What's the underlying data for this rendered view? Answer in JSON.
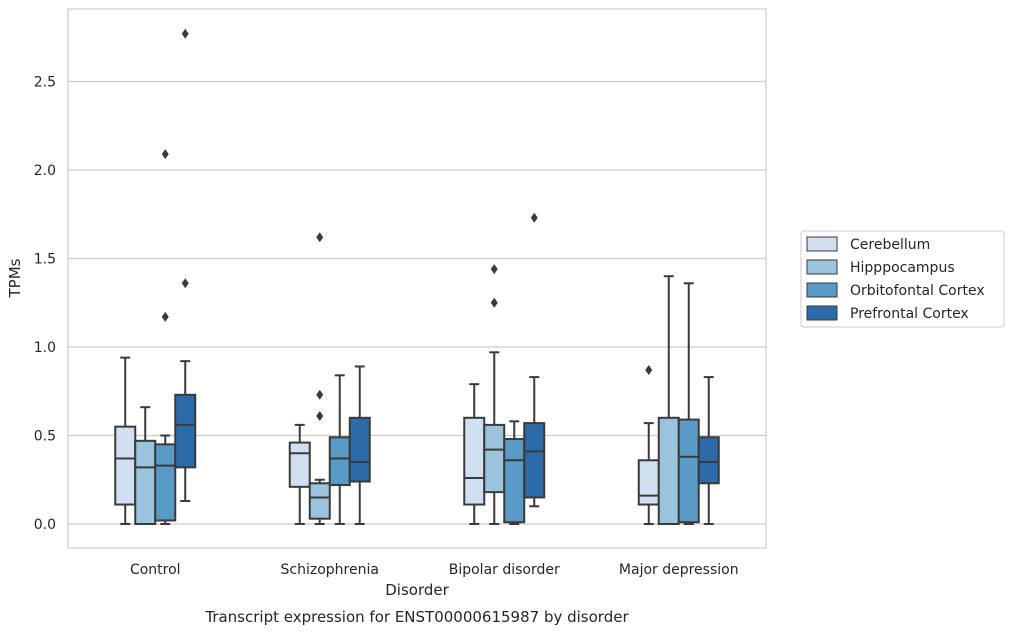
{
  "chart_data": {
    "type": "box",
    "title": "",
    "caption": "Transcript expression for ENST00000615987 by disorder",
    "xlabel": "Disorder",
    "ylabel": "TPMs",
    "ylim": [
      -0.13,
      2.93
    ],
    "yticks": [
      "0.0",
      "0.5",
      "1.0",
      "1.5",
      "2.0",
      "2.5"
    ],
    "grid": "horizontal",
    "legend_position": "right",
    "categories": [
      "Control",
      "Schizophrenia",
      "Bipolar disorder",
      "Major depression"
    ],
    "series": [
      {
        "name": "Cerebellum",
        "color": "#d1e0f0",
        "boxes": [
          {
            "whisker_low": 0.0,
            "q1": 0.11,
            "median": 0.37,
            "q3": 0.55,
            "whisker_high": 0.94,
            "outliers": []
          },
          {
            "whisker_low": 0.0,
            "q1": 0.21,
            "median": 0.4,
            "q3": 0.46,
            "whisker_high": 0.56,
            "outliers": []
          },
          {
            "whisker_low": 0.0,
            "q1": 0.11,
            "median": 0.26,
            "q3": 0.6,
            "whisker_high": 0.79,
            "outliers": []
          },
          {
            "whisker_low": 0.0,
            "q1": 0.11,
            "median": 0.16,
            "q3": 0.36,
            "whisker_high": 0.57,
            "outliers": [
              0.87
            ]
          }
        ]
      },
      {
        "name": "Hipppocampus",
        "color": "#9ac3dd",
        "boxes": [
          {
            "whisker_low": 0.0,
            "q1": 0.0,
            "median": 0.32,
            "q3": 0.47,
            "whisker_high": 0.66,
            "outliers": []
          },
          {
            "whisker_low": 0.0,
            "q1": 0.03,
            "median": 0.15,
            "q3": 0.23,
            "whisker_high": 0.25,
            "outliers": [
              0.61,
              0.73,
              1.62
            ]
          },
          {
            "whisker_low": 0.0,
            "q1": 0.18,
            "median": 0.42,
            "q3": 0.56,
            "whisker_high": 0.97,
            "outliers": [
              1.25,
              1.44
            ]
          },
          {
            "whisker_low": 0.0,
            "q1": 0.0,
            "median": 0.0,
            "q3": 0.6,
            "whisker_high": 1.4,
            "outliers": []
          }
        ]
      },
      {
        "name": "Orbitofontal Cortex",
        "color": "#5a9ac7",
        "boxes": [
          {
            "whisker_low": 0.0,
            "q1": 0.02,
            "median": 0.33,
            "q3": 0.45,
            "whisker_high": 0.5,
            "outliers": [
              1.17,
              2.09
            ]
          },
          {
            "whisker_low": 0.0,
            "q1": 0.22,
            "median": 0.37,
            "q3": 0.49,
            "whisker_high": 0.84,
            "outliers": []
          },
          {
            "whisker_low": 0.0,
            "q1": 0.01,
            "median": 0.36,
            "q3": 0.48,
            "whisker_high": 0.58,
            "outliers": []
          },
          {
            "whisker_low": 0.0,
            "q1": 0.01,
            "median": 0.38,
            "q3": 0.59,
            "whisker_high": 1.36,
            "outliers": []
          }
        ]
      },
      {
        "name": "Prefrontal Cortex",
        "color": "#2c6aa8",
        "boxes": [
          {
            "whisker_low": 0.13,
            "q1": 0.32,
            "median": 0.56,
            "q3": 0.73,
            "whisker_high": 0.92,
            "outliers": [
              1.36,
              2.77
            ]
          },
          {
            "whisker_low": 0.0,
            "q1": 0.24,
            "median": 0.35,
            "q3": 0.6,
            "whisker_high": 0.89,
            "outliers": []
          },
          {
            "whisker_low": 0.1,
            "q1": 0.15,
            "median": 0.41,
            "q3": 0.57,
            "whisker_high": 0.83,
            "outliers": [
              1.73
            ]
          },
          {
            "whisker_low": 0.0,
            "q1": 0.23,
            "median": 0.35,
            "q3": 0.49,
            "whisker_high": 0.83,
            "outliers": []
          }
        ]
      }
    ]
  }
}
